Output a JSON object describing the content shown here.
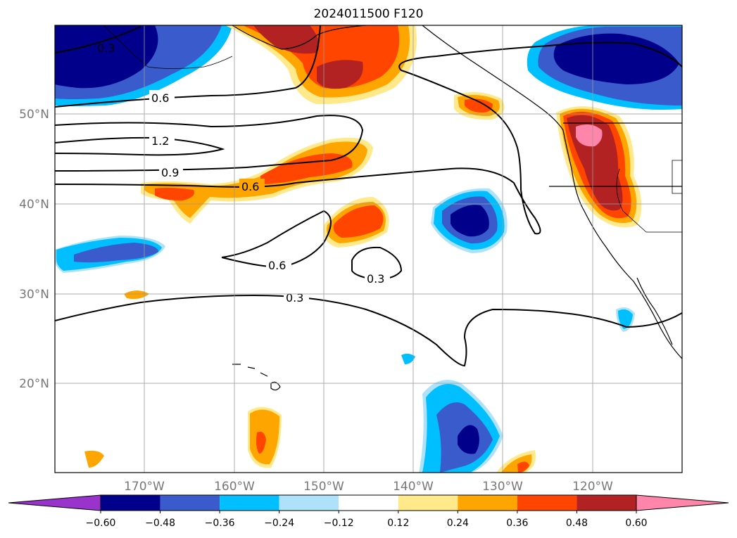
{
  "title": "2024011500 F120",
  "latitude_labels": [
    "50°N",
    "40°N",
    "30°N",
    "20°N"
  ],
  "longitude_labels": [
    "170°W",
    "160°W",
    "150°W",
    "140°W",
    "130°W",
    "120°W"
  ],
  "colorbar": {
    "ticks": [
      "−0.60",
      "−0.48",
      "−0.36",
      "−0.24",
      "−0.12",
      "0.12",
      "0.24",
      "0.36",
      "0.48",
      "0.60"
    ],
    "colors": [
      "#9933cc",
      "#00008b",
      "#3a5bcc",
      "#00bfff",
      "#aee2fa",
      "#ffffff",
      "#ffe98a",
      "#ffa500",
      "#ff4500",
      "#b22222",
      "#ff85aa"
    ]
  },
  "contour_labels": [
    "0.3",
    "0.6",
    "1.2",
    "0.9",
    "0.6",
    "0.6",
    "0.3",
    "0.3"
  ]
}
